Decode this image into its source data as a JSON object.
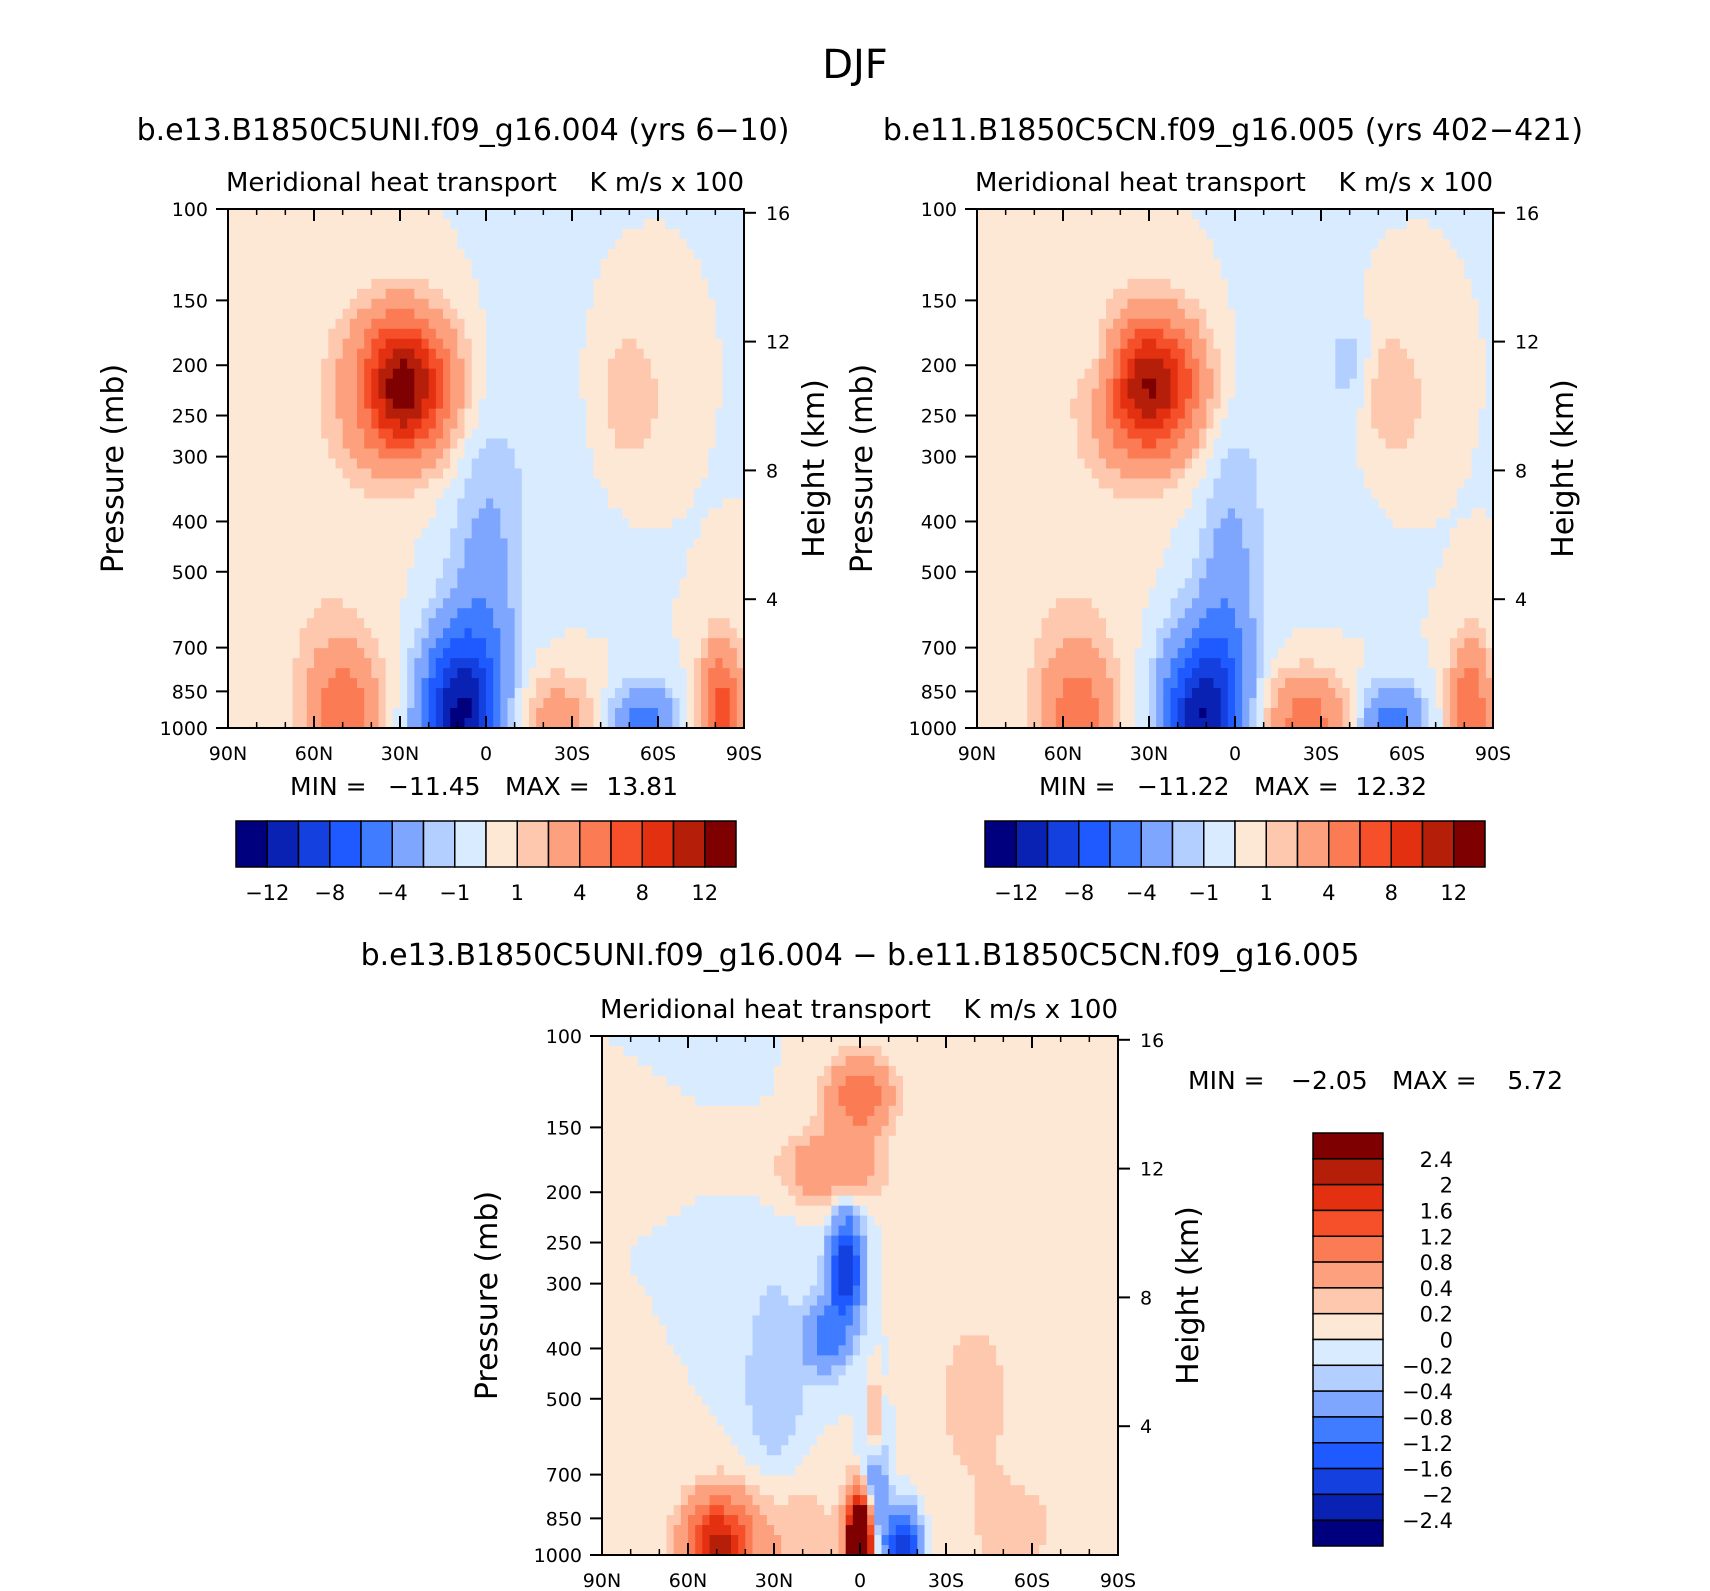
{
  "figure": {
    "title": "DJF"
  },
  "chart_data": [
    {
      "type": "heatmap",
      "id": "panel_a",
      "run_title": "b.e13.B1850C5UNI.f09_g16.004 (yrs 6-10)",
      "title_left": "Meridional heat transport",
      "title_right": "K m/s x 100",
      "xlabel": "",
      "ylabel": "Pressure (mb)",
      "y2label": "Height (km)",
      "x_ticks": [
        "90N",
        "60N",
        "30N",
        "0",
        "30S",
        "60S",
        "90S"
      ],
      "y_ticks": [
        "100",
        "150",
        "200",
        "250",
        "300",
        "400",
        "500",
        "700",
        "850",
        "1000"
      ],
      "y2_ticks": [
        "16",
        "12",
        "8",
        "4"
      ],
      "stats": {
        "min_label": "MIN =",
        "min": "-11.45",
        "max_label": "MAX =",
        "max": "13.81"
      },
      "colorbar_labels": [
        "-12",
        "-8",
        "-4",
        "-1",
        "1",
        "4",
        "8",
        "12"
      ],
      "levels": [
        -12,
        -10,
        -8,
        -6,
        -4,
        -2,
        -1,
        0,
        1,
        2,
        4,
        6,
        8,
        10,
        12
      ],
      "colors": [
        "#00007f",
        "#0a22b4",
        "#1540e0",
        "#1e5aff",
        "#3f7cff",
        "#7fa6ff",
        "#b3cfff",
        "#d9ebff",
        "#fde8d6",
        "#fdc8ae",
        "#fca07e",
        "#fb7c54",
        "#f5502a",
        "#e23010",
        "#b51f0a",
        "#7f0000"
      ],
      "features": [
        {
          "lat": 30,
          "p": 220,
          "dlat": 12,
          "dz": 1.5,
          "amp": 13.8
        },
        {
          "lat": 42,
          "p": 220,
          "dlat": 6,
          "dz": 1.0,
          "amp": -2.5
        },
        {
          "lat": -50,
          "p": 230,
          "dlat": 8,
          "dz": 1.5,
          "amp": 2.0
        },
        {
          "lat": 10,
          "p": 950,
          "dlat": 9,
          "dz": 1.8,
          "amp": -11.45
        },
        {
          "lat": 0,
          "p": 650,
          "dlat": 8,
          "dz": 3.5,
          "amp": -3.0
        },
        {
          "lat": 50,
          "p": 950,
          "dlat": 9,
          "dz": 1.5,
          "amp": 5.5
        },
        {
          "lat": -25,
          "p": 960,
          "dlat": 10,
          "dz": 1.0,
          "amp": 3.0
        },
        {
          "lat": -55,
          "p": 970,
          "dlat": 8,
          "dz": 0.8,
          "amp": -5.0
        },
        {
          "lat": -82,
          "p": 930,
          "dlat": 5,
          "dz": 1.5,
          "amp": 7.0
        },
        {
          "lat": 60,
          "p": 500,
          "dlat": 18,
          "dz": 3.0,
          "amp": 0.8
        },
        {
          "lat": -10,
          "p": 300,
          "dlat": 20,
          "dz": 3.0,
          "amp": -0.6
        }
      ]
    },
    {
      "type": "heatmap",
      "id": "panel_b",
      "run_title": "b.e11.B1850C5CN.f09_g16.005 (yrs 402-421)",
      "title_left": "Meridional heat transport",
      "title_right": "K m/s x 100",
      "xlabel": "",
      "ylabel": "Pressure (mb)",
      "y2label": "Height (km)",
      "x_ticks": [
        "90N",
        "60N",
        "30N",
        "0",
        "30S",
        "60S",
        "90S"
      ],
      "y_ticks": [
        "100",
        "150",
        "200",
        "250",
        "300",
        "400",
        "500",
        "700",
        "850",
        "1000"
      ],
      "y2_ticks": [
        "16",
        "12",
        "8",
        "4"
      ],
      "stats": {
        "min_label": "MIN =",
        "min": "-11.22",
        "max_label": "MAX =",
        "max": "12.32"
      },
      "colorbar_labels": [
        "-12",
        "-8",
        "-4",
        "-1",
        "1",
        "4",
        "8",
        "12"
      ],
      "levels": [
        -12,
        -10,
        -8,
        -6,
        -4,
        -2,
        -1,
        0,
        1,
        2,
        4,
        6,
        8,
        10,
        12
      ],
      "colors": [
        "#00007f",
        "#0a22b4",
        "#1540e0",
        "#1e5aff",
        "#3f7cff",
        "#7fa6ff",
        "#b3cfff",
        "#d9ebff",
        "#fde8d6",
        "#fdc8ae",
        "#fca07e",
        "#fb7c54",
        "#f5502a",
        "#e23010",
        "#b51f0a",
        "#7f0000"
      ],
      "features": [
        {
          "lat": 30,
          "p": 220,
          "dlat": 12,
          "dz": 1.5,
          "amp": 12.3
        },
        {
          "lat": 45,
          "p": 200,
          "dlat": 6,
          "dz": 1.0,
          "amp": -2.5
        },
        {
          "lat": -40,
          "p": 200,
          "dlat": 5,
          "dz": 1.0,
          "amp": -1.5
        },
        {
          "lat": -55,
          "p": 230,
          "dlat": 8,
          "dz": 1.5,
          "amp": 2.0
        },
        {
          "lat": 12,
          "p": 950,
          "dlat": 9,
          "dz": 1.8,
          "amp": -11.22
        },
        {
          "lat": 2,
          "p": 650,
          "dlat": 7,
          "dz": 3.5,
          "amp": -3.0
        },
        {
          "lat": 55,
          "p": 940,
          "dlat": 9,
          "dz": 1.5,
          "amp": 5.0
        },
        {
          "lat": -25,
          "p": 960,
          "dlat": 10,
          "dz": 1.0,
          "amp": 5.0
        },
        {
          "lat": -55,
          "p": 970,
          "dlat": 8,
          "dz": 0.8,
          "amp": -5.0
        },
        {
          "lat": -82,
          "p": 930,
          "dlat": 5,
          "dz": 1.5,
          "amp": 6.0
        },
        {
          "lat": 60,
          "p": 500,
          "dlat": 18,
          "dz": 3.0,
          "amp": 0.8
        },
        {
          "lat": -15,
          "p": 300,
          "dlat": 20,
          "dz": 3.0,
          "amp": -0.6
        }
      ]
    },
    {
      "type": "heatmap",
      "id": "panel_diff",
      "run_title": "b.e13.B1850C5UNI.f09_g16.004 - b.e11.B1850C5CN.f09_g16.005",
      "title_left": "Meridional heat transport",
      "title_right": "K m/s x 100",
      "xlabel": "",
      "ylabel": "Pressure (mb)",
      "y2label": "Height (km)",
      "x_ticks": [
        "90N",
        "60N",
        "30N",
        "0",
        "30S",
        "60S",
        "90S"
      ],
      "y_ticks": [
        "100",
        "150",
        "200",
        "250",
        "300",
        "400",
        "500",
        "700",
        "850",
        "1000"
      ],
      "y2_ticks": [
        "16",
        "12",
        "8",
        "4"
      ],
      "stats": {
        "min_label": "MIN =",
        "min": "-2.05",
        "max_label": "MAX =",
        "max": "5.72"
      },
      "colorbar_labels": [
        "2.4",
        "2",
        "1.6",
        "1.2",
        "0.8",
        "0.4",
        "0.2",
        "0",
        "-0.2",
        "-0.4",
        "-0.8",
        "-1.2",
        "-1.6",
        "-2",
        "-2.4"
      ],
      "levels": [
        -2.4,
        -2,
        -1.6,
        -1.2,
        -0.8,
        -0.4,
        -0.2,
        0,
        0.2,
        0.4,
        0.8,
        1.2,
        1.6,
        2,
        2.4
      ],
      "colors": [
        "#00007f",
        "#0a22b4",
        "#1540e0",
        "#1e5aff",
        "#3f7cff",
        "#7fa6ff",
        "#b3cfff",
        "#d9ebff",
        "#fde8d6",
        "#fdc8ae",
        "#fca07e",
        "#fb7c54",
        "#f5502a",
        "#e23010",
        "#b51f0a",
        "#7f0000"
      ],
      "features": [
        {
          "lat": 0,
          "p": 960,
          "dlat": 3,
          "dz": 1.0,
          "amp": 5.7
        },
        {
          "lat": -15,
          "p": 960,
          "dlat": 4,
          "dz": 0.8,
          "amp": -2.0
        },
        {
          "lat": 5,
          "p": 280,
          "dlat": 4,
          "dz": 1.2,
          "amp": -2.0
        },
        {
          "lat": 12,
          "p": 380,
          "dlat": 5,
          "dz": 0.8,
          "amp": -1.0
        },
        {
          "lat": 10,
          "p": 180,
          "dlat": 12,
          "dz": 0.8,
          "amp": 0.8
        },
        {
          "lat": 0,
          "p": 130,
          "dlat": 8,
          "dz": 0.8,
          "amp": 1.2
        },
        {
          "lat": -5,
          "p": 550,
          "dlat": 2,
          "dz": 1.0,
          "amp": 1.0
        },
        {
          "lat": -5,
          "p": 750,
          "dlat": 3,
          "dz": 2.0,
          "amp": -1.0
        },
        {
          "lat": 50,
          "p": 960,
          "dlat": 8,
          "dz": 1.0,
          "amp": 2.0
        },
        {
          "lat": 30,
          "p": 900,
          "dlat": 15,
          "dz": 1.5,
          "amp": 0.5
        },
        {
          "lat": -55,
          "p": 900,
          "dlat": 10,
          "dz": 1.0,
          "amp": 0.3
        },
        {
          "lat": 30,
          "p": 500,
          "dlat": 8,
          "dz": 3.0,
          "amp": -0.4
        },
        {
          "lat": -40,
          "p": 500,
          "dlat": 15,
          "dz": 3.0,
          "amp": 0.25
        }
      ]
    }
  ]
}
